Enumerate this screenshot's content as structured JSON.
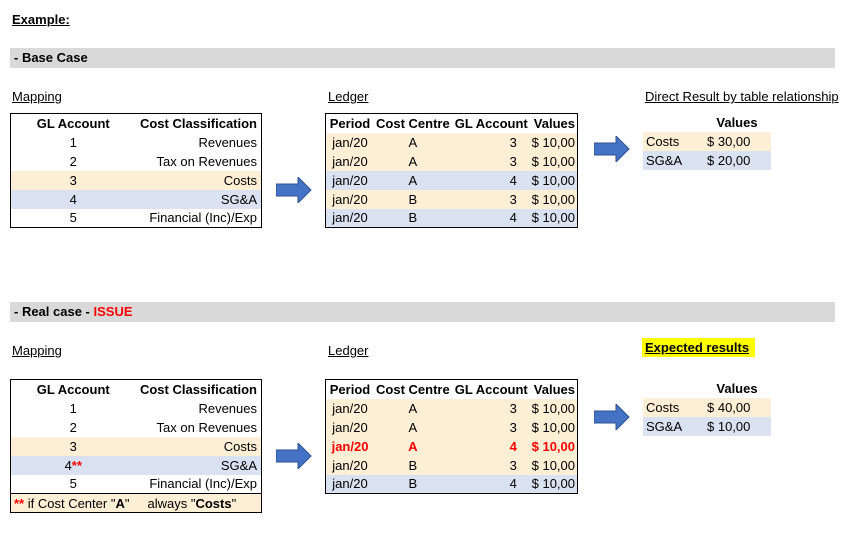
{
  "example_title": "Example:",
  "base": {
    "bar_label": "- Base Case",
    "mapping_label": "Mapping",
    "ledger_label": "Ledger",
    "result_label": "Direct Result by table relationship",
    "mapping_headers": [
      "GL Account",
      "Cost Classification"
    ],
    "mapping_rows": [
      {
        "gl": "1",
        "cls": "Revenues"
      },
      {
        "gl": "2",
        "cls": "Tax on Revenues"
      },
      {
        "gl": "3",
        "cls": "Costs"
      },
      {
        "gl": "4",
        "cls": "SG&A"
      },
      {
        "gl": "5",
        "cls": "Financial (Inc)/Exp"
      }
    ],
    "ledger_headers": [
      "Period",
      "Cost Centre",
      "GL Account",
      "Values"
    ],
    "ledger_rows": [
      {
        "period": "jan/20",
        "cc": "A",
        "gl": "3",
        "value": "$ 10,00"
      },
      {
        "period": "jan/20",
        "cc": "A",
        "gl": "3",
        "value": "$ 10,00"
      },
      {
        "period": "jan/20",
        "cc": "A",
        "gl": "4",
        "value": "$ 10,00"
      },
      {
        "period": "jan/20",
        "cc": "B",
        "gl": "3",
        "value": "$ 10,00"
      },
      {
        "period": "jan/20",
        "cc": "B",
        "gl": "4",
        "value": "$ 10,00"
      }
    ],
    "result_header": "Values",
    "result_rows": [
      {
        "label": "Costs",
        "value": "$ 30,00"
      },
      {
        "label": "SG&A",
        "value": "$ 20,00"
      }
    ]
  },
  "real": {
    "bar_label": "- Real case - ",
    "bar_issue": "ISSUE",
    "mapping_label": "Mapping",
    "ledger_label": "Ledger",
    "result_label": "Expected results",
    "mapping_headers": [
      "GL Account",
      "Cost Classification"
    ],
    "mapping_rows": [
      {
        "gl": "1",
        "star": "",
        "cls": "Revenues"
      },
      {
        "gl": "2",
        "star": "",
        "cls": "Tax on Revenues"
      },
      {
        "gl": "3",
        "star": "",
        "cls": "Costs"
      },
      {
        "gl": "4",
        "star": "**",
        "cls": "SG&A"
      },
      {
        "gl": "5",
        "star": "",
        "cls": "Financial (Inc)/Exp"
      }
    ],
    "note": {
      "stars": "**",
      "pre": " if Cost Center \"",
      "cc": "A",
      "mid": "\"     always \"",
      "cls": "Costs",
      "post": "\""
    },
    "ledger_headers": [
      "Period",
      "Cost Centre",
      "GL Account",
      "Values"
    ],
    "ledger_rows": [
      {
        "period": "jan/20",
        "cc": "A",
        "gl": "3",
        "value": "$ 10,00"
      },
      {
        "period": "jan/20",
        "cc": "A",
        "gl": "3",
        "value": "$ 10,00"
      },
      {
        "period": "jan/20",
        "cc": "A",
        "gl": "4",
        "value": "$ 10,00"
      },
      {
        "period": "jan/20",
        "cc": "B",
        "gl": "3",
        "value": "$ 10,00"
      },
      {
        "period": "jan/20",
        "cc": "B",
        "gl": "4",
        "value": "$ 10,00"
      }
    ],
    "result_header": "Values",
    "result_rows": [
      {
        "label": "Costs",
        "value": "$ 40,00"
      },
      {
        "label": "SG&A",
        "value": "$ 10,00"
      }
    ]
  },
  "colors": {
    "peach": "#fdefd6",
    "blue": "#dae1f0",
    "arrow": "#4472c4",
    "issue": "#ff0000",
    "highlight": "#ffff00"
  }
}
